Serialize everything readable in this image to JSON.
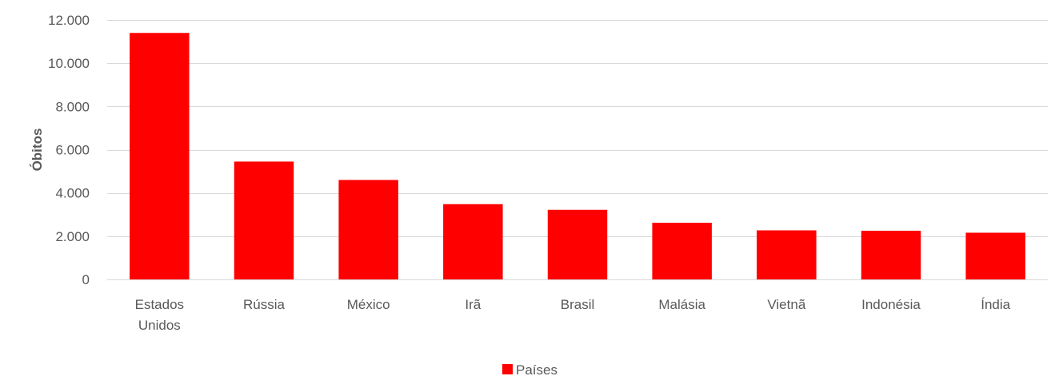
{
  "chart_data": {
    "type": "bar",
    "categories": [
      "Estados Unidos",
      "Rússia",
      "México",
      "Irã",
      "Brasil",
      "Malásia",
      "Vietnã",
      "Indonésia",
      "Índia"
    ],
    "category_labels": [
      [
        "Estados",
        "Unidos"
      ],
      [
        "Rússia"
      ],
      [
        "México"
      ],
      [
        "Irã"
      ],
      [
        "Brasil"
      ],
      [
        "Malásia"
      ],
      [
        "Vietnã"
      ],
      [
        "Indonésia"
      ],
      [
        "Índia"
      ]
    ],
    "series": [
      {
        "name": "Países",
        "color": "#ff0000",
        "values": [
          11400,
          5450,
          4600,
          3480,
          3220,
          2620,
          2270,
          2250,
          2160
        ]
      }
    ],
    "title": "",
    "xlabel": "",
    "ylabel": "Óbitos",
    "ylim": [
      0,
      12000
    ],
    "yticks": [
      0,
      2000,
      4000,
      6000,
      8000,
      10000,
      12000
    ],
    "ytick_labels": [
      "0",
      "2.000",
      "4.000",
      "6.000",
      "8.000",
      "10.000",
      "12.000"
    ],
    "grid": true,
    "legend_position": "bottom"
  }
}
